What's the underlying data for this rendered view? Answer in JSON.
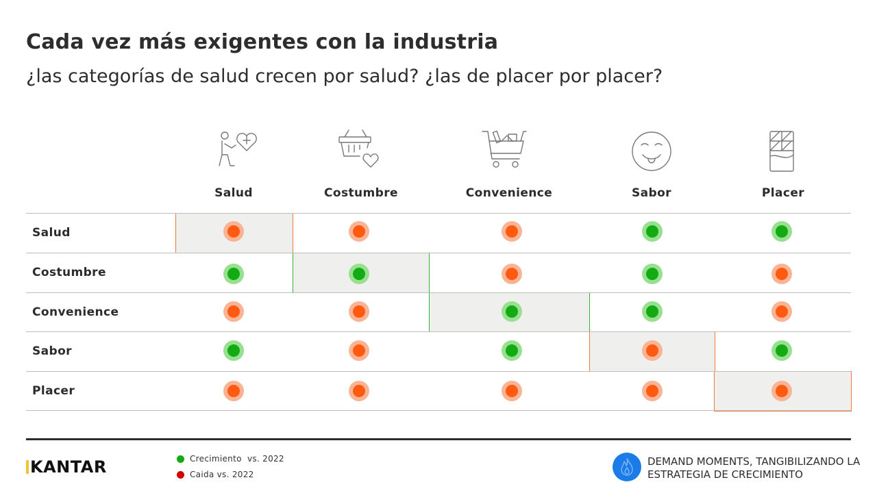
{
  "title": "Cada vez más exigentes con la industria",
  "subtitle": "¿las categorías de salud crecen por salud? ¿las de placer por placer?",
  "columns": [
    {
      "label": "Salud",
      "icon": "person-heart-icon"
    },
    {
      "label": "Costumbre",
      "icon": "basket-heart-icon"
    },
    {
      "label": "Convenience",
      "icon": "shopping-cart-icon"
    },
    {
      "label": "Sabor",
      "icon": "tongue-face-icon"
    },
    {
      "label": "Placer",
      "icon": "chocolate-bar-icon"
    }
  ],
  "rows": [
    {
      "label": "Salud",
      "cells": [
        "down",
        "down",
        "down",
        "up",
        "up"
      ]
    },
    {
      "label": "Costumbre",
      "cells": [
        "up",
        "up",
        "down",
        "up",
        "down"
      ]
    },
    {
      "label": "Convenience",
      "cells": [
        "down",
        "down",
        "up",
        "up",
        "down"
      ]
    },
    {
      "label": "Sabor",
      "cells": [
        "up",
        "down",
        "up",
        "down",
        "up"
      ]
    },
    {
      "label": "Placer",
      "cells": [
        "down",
        "down",
        "down",
        "down",
        "down"
      ]
    }
  ],
  "colors": {
    "growth": "#13aa13",
    "decline_legend": "#d40000",
    "decline_dot": "#ff5a0f",
    "highlight_bg": "#efefed",
    "brand_blue": "#1b7ce8"
  },
  "legend": {
    "growth_label": "Crecimiento  vs. 2022",
    "decline_label": "Caida vs. 2022"
  },
  "footer": {
    "logo": "KANTAR",
    "tagline_line1": "DEMAND MOMENTS, TANGIBILIZANDO LA",
    "tagline_line2": "ESTRATEGIA DE CRECIMIENTO"
  }
}
